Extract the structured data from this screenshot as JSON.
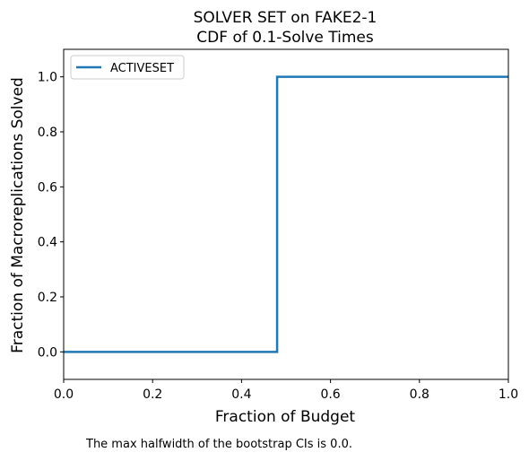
{
  "chart_data": {
    "type": "line",
    "title_line1": "SOLVER SET on FAKE2-1",
    "title_line2": "CDF of 0.1-Solve Times",
    "xlabel": "Fraction of Budget",
    "ylabel": "Fraction of Macroreplications Solved",
    "xlim": [
      0.0,
      1.0
    ],
    "ylim": [
      -0.1,
      1.1
    ],
    "xticks": [
      "0.0",
      "0.2",
      "0.4",
      "0.6",
      "0.8",
      "1.0"
    ],
    "yticks": [
      "0.0",
      "0.2",
      "0.4",
      "0.6",
      "0.8",
      "1.0"
    ],
    "legend_position": "top-left",
    "series": [
      {
        "name": "ACTIVESET",
        "color": "#1f77b4",
        "step": true,
        "x": [
          0.0,
          0.48,
          0.48,
          1.0
        ],
        "y": [
          0.0,
          0.0,
          1.0,
          1.0
        ]
      }
    ]
  },
  "footnote": "The max halfwidth of the bootstrap CIs is 0.0."
}
